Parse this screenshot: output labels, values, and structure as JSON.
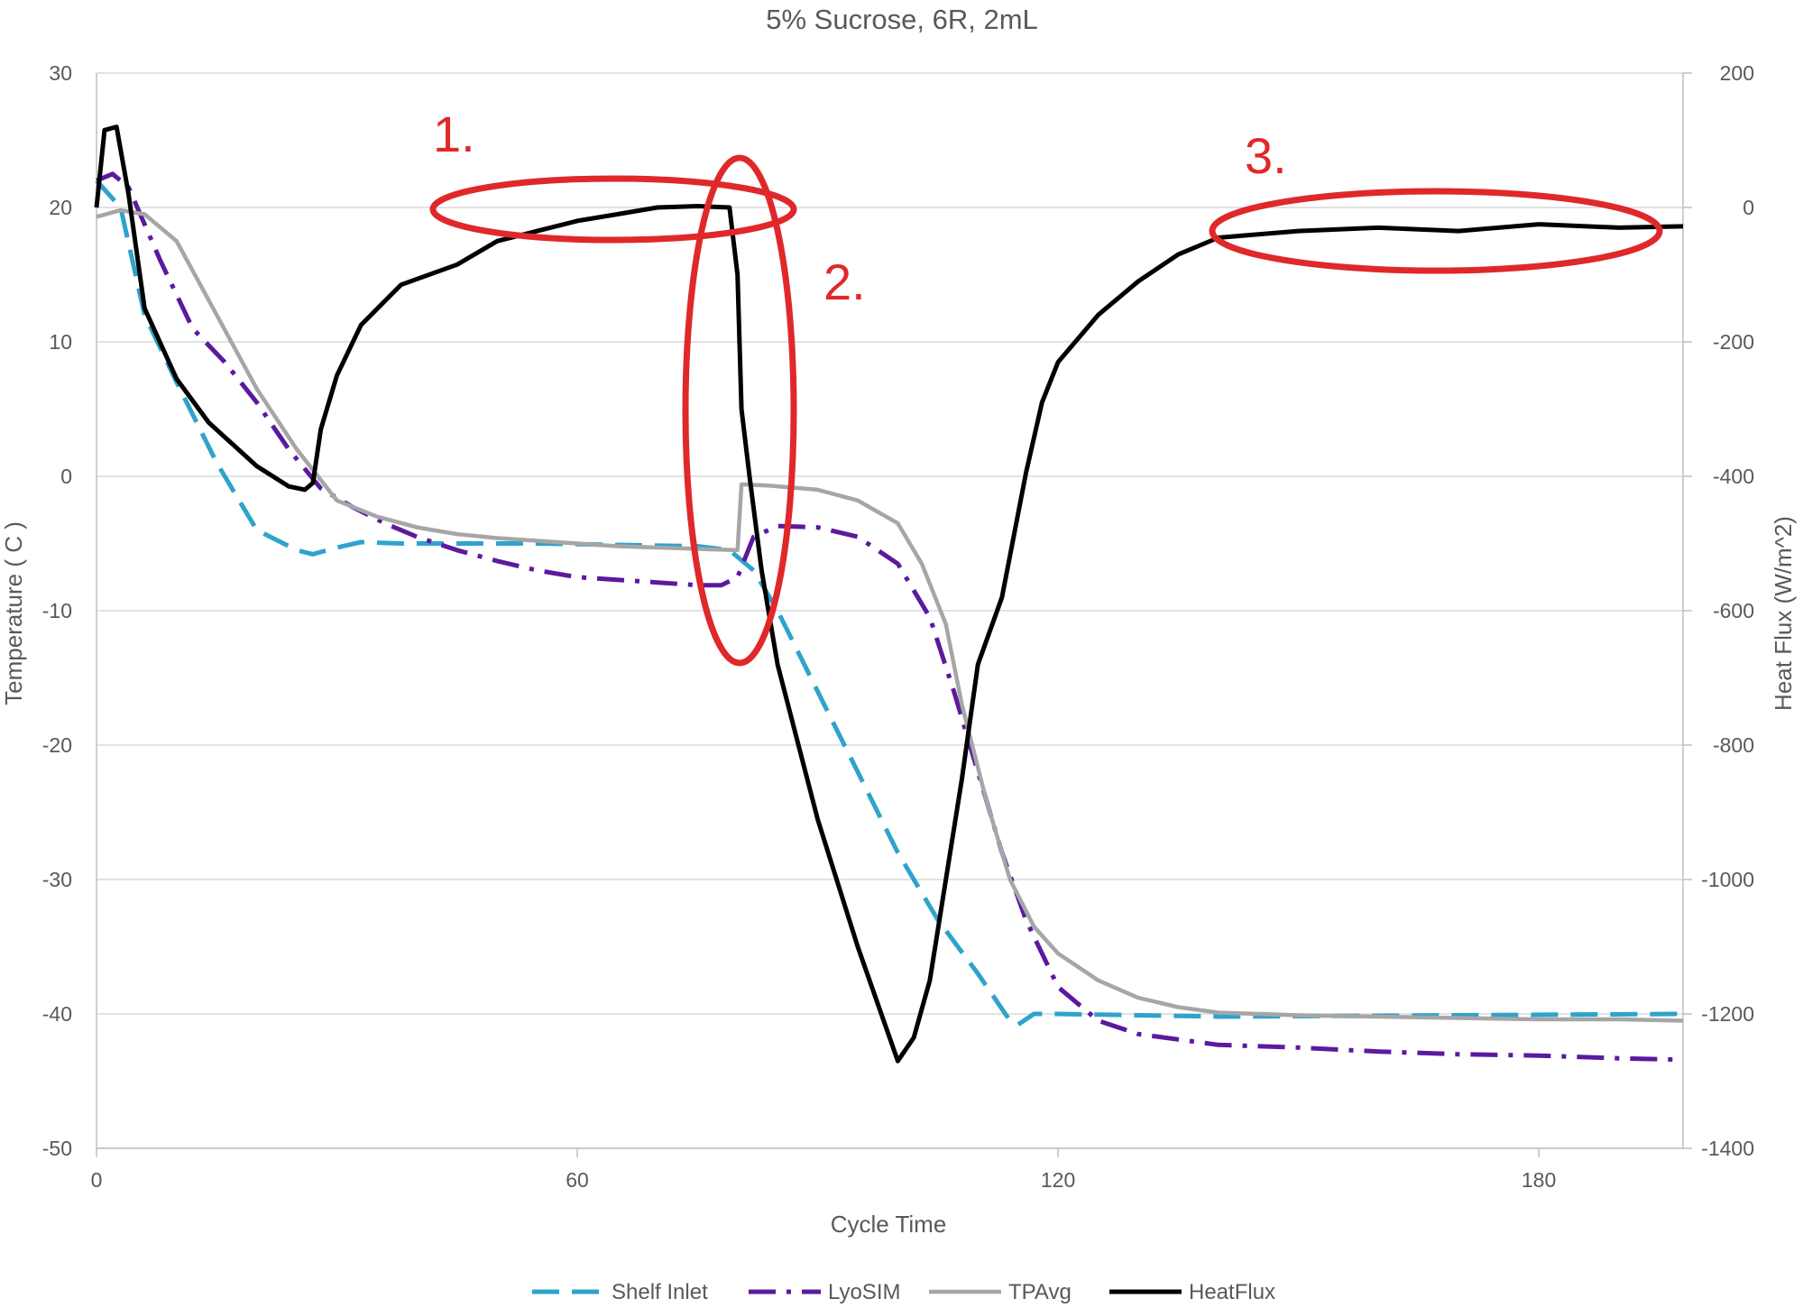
{
  "chart_data": {
    "type": "line",
    "title": "5% Sucrose, 6R, 2mL",
    "xlabel": "Cycle Time",
    "ylabel": "Temperature ( C )",
    "y2label": "Heat Flux (W/m^2)",
    "xlim": [
      0,
      198
    ],
    "ylim": [
      -50,
      30
    ],
    "y2lim": [
      -1400,
      200
    ],
    "xticks": [
      "0",
      "60",
      "120",
      "180"
    ],
    "yticks": [
      "30",
      "20",
      "10",
      "0",
      "-10",
      "-20",
      "-30",
      "-40",
      "-50"
    ],
    "y2ticks": [
      "200",
      "0",
      "-200",
      "-400",
      "-600",
      "-800",
      "-1000",
      "-1200",
      "-1400"
    ],
    "grid": true,
    "legend_position": "bottom",
    "series": [
      {
        "name": "Shelf Inlet",
        "axis": "left",
        "color": "#2ea3cc",
        "dash": "dashed",
        "x": [
          0,
          3,
          6,
          10,
          15,
          20,
          25,
          27,
          30,
          33,
          38,
          45,
          55,
          65,
          75,
          79,
          80,
          82,
          85,
          90,
          95,
          100,
          105,
          110,
          114,
          115,
          117,
          120,
          140,
          198
        ],
        "y": [
          22,
          20,
          12,
          7,
          1,
          -4,
          -5.5,
          -5.8,
          -5.3,
          -4.9,
          -5,
          -5,
          -5,
          -5.1,
          -5.2,
          -5.5,
          -6,
          -7,
          -10,
          -16,
          -22,
          -28,
          -33,
          -37,
          -40.5,
          -40.8,
          -40,
          -40,
          -40.2,
          -40
        ]
      },
      {
        "name": "LyoSIM",
        "axis": "left",
        "color": "#5b1a9e",
        "dash": "dashdot",
        "x": [
          0,
          2,
          4,
          8,
          12,
          16,
          20,
          24,
          28,
          32,
          36,
          40,
          45,
          50,
          55,
          60,
          65,
          70,
          75,
          78,
          80,
          82,
          85,
          90,
          95,
          100,
          104,
          107,
          110,
          113,
          116,
          120,
          125,
          130,
          140,
          150,
          160,
          170,
          180,
          190,
          198
        ],
        "y": [
          22,
          22.5,
          21.5,
          16,
          11,
          8.5,
          5.5,
          2,
          -0.9,
          -2.3,
          -3.5,
          -4.5,
          -5.5,
          -6.3,
          -7,
          -7.5,
          -7.7,
          -7.9,
          -8.1,
          -8.1,
          -7.5,
          -4.5,
          -3.7,
          -3.8,
          -4.5,
          -6.5,
          -10.5,
          -16,
          -22,
          -28,
          -33,
          -38,
          -40.5,
          -41.5,
          -42.3,
          -42.5,
          -42.8,
          -43,
          -43.1,
          -43.3,
          -43.4
        ]
      },
      {
        "name": "TPAvg",
        "axis": "left",
        "color": "#a6a6a6",
        "dash": "solid",
        "x": [
          0,
          3,
          6,
          10,
          15,
          20,
          25,
          30,
          35,
          40,
          45,
          50,
          55,
          60,
          65,
          70,
          75,
          80,
          80.5,
          84,
          90,
          95,
          100,
          103,
          106,
          108,
          111,
          114,
          117,
          120,
          125,
          130,
          135,
          140,
          150,
          160,
          170,
          180,
          190,
          198
        ],
        "y": [
          19.3,
          19.8,
          19.5,
          17.5,
          12,
          6.5,
          2,
          -1.8,
          -3,
          -3.8,
          -4.3,
          -4.6,
          -4.8,
          -5,
          -5.2,
          -5.3,
          -5.4,
          -5.5,
          -0.6,
          -0.7,
          -1,
          -1.8,
          -3.5,
          -6.5,
          -11,
          -17,
          -24,
          -30,
          -33.5,
          -35.5,
          -37.5,
          -38.8,
          -39.5,
          -39.9,
          -40.1,
          -40.2,
          -40.3,
          -40.4,
          -40.4,
          -40.5
        ]
      },
      {
        "name": "HeatFlux",
        "axis": "right",
        "color": "#000000",
        "dash": "solid",
        "x": [
          0,
          1,
          2.5,
          4,
          6,
          10,
          14,
          20,
          24,
          26,
          27,
          28,
          30,
          33,
          38,
          45,
          50,
          55,
          60,
          65,
          70,
          75,
          79,
          80,
          80.5,
          81.5,
          83,
          85,
          90,
          95,
          100,
          102,
          104,
          106,
          108,
          110,
          113,
          116,
          118,
          120,
          125,
          130,
          135,
          140,
          145,
          150,
          160,
          170,
          180,
          190,
          198
        ],
        "y": [
          0,
          115,
          120,
          20,
          -150,
          -255,
          -320,
          -385,
          -415,
          -420,
          -410,
          -330,
          -250,
          -175,
          -115,
          -85,
          -50,
          -35,
          -20,
          -10,
          0,
          2,
          0,
          -100,
          -300,
          -400,
          -540,
          -680,
          -910,
          -1100,
          -1270,
          -1235,
          -1150,
          -1000,
          -850,
          -680,
          -580,
          -395,
          -290,
          -230,
          -160,
          -110,
          -70,
          -45,
          -40,
          -35,
          -30,
          -35,
          -25,
          -30,
          -28
        ]
      }
    ],
    "annotations": [
      {
        "label": "1.",
        "color": "#e0282a"
      },
      {
        "label": "2.",
        "color": "#e0282a"
      },
      {
        "label": "3.",
        "color": "#e0282a"
      }
    ]
  }
}
